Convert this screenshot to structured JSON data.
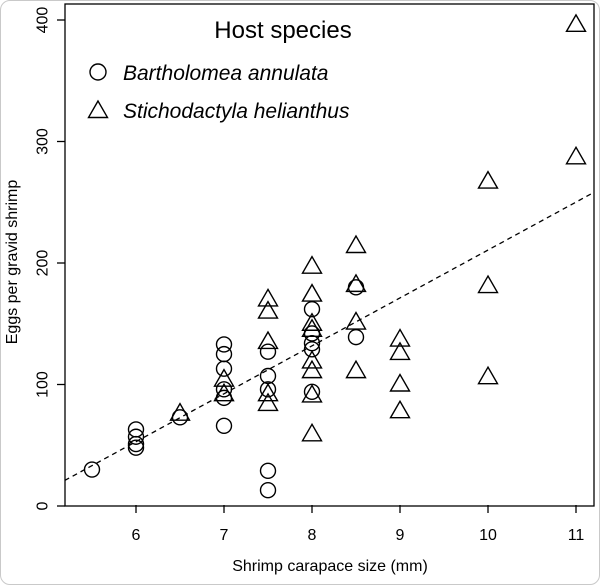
{
  "figure": {
    "background": "#ffffff",
    "frame_color": "#c9c9c9"
  },
  "colors": {
    "axis": "#000000",
    "marker": "#000000",
    "trend_line": "#000000",
    "text": "#000000"
  },
  "chart_data": {
    "type": "scatter",
    "title": "Host species",
    "xlabel": "Shrimp carapace size (mm)",
    "ylabel": "Eggs per gravid shrimp",
    "xlim": [
      5.2,
      11.2
    ],
    "ylim": [
      0,
      400
    ],
    "x_ticks": [
      6,
      7,
      8,
      9,
      10,
      11
    ],
    "y_ticks": [
      0,
      100,
      200,
      300,
      400
    ],
    "grid": false,
    "legend_position": "top-left-inside",
    "series": [
      {
        "name": "Bartholomea annulata",
        "marker": "circle",
        "points": [
          [
            5.5,
            30
          ],
          [
            6,
            63
          ],
          [
            6,
            57
          ],
          [
            6,
            51
          ],
          [
            6,
            48
          ],
          [
            6.5,
            73
          ],
          [
            7,
            133
          ],
          [
            7,
            125
          ],
          [
            7,
            113
          ],
          [
            7,
            96
          ],
          [
            7,
            89
          ],
          [
            7,
            66
          ],
          [
            7.5,
            127
          ],
          [
            7.5,
            107
          ],
          [
            7.5,
            96
          ],
          [
            7.5,
            29
          ],
          [
            7.5,
            13
          ],
          [
            8,
            162
          ],
          [
            8,
            142
          ],
          [
            8,
            134
          ],
          [
            8,
            129
          ],
          [
            8,
            94
          ],
          [
            8.5,
            180
          ],
          [
            8.5,
            139
          ]
        ]
      },
      {
        "name": "Stichodactyla helianthus",
        "marker": "triangle",
        "points": [
          [
            6.5,
            76
          ],
          [
            7,
            104
          ],
          [
            7,
            92
          ],
          [
            7.5,
            170
          ],
          [
            7.5,
            160
          ],
          [
            7.5,
            135
          ],
          [
            7.5,
            92
          ],
          [
            7.5,
            84
          ],
          [
            8,
            197
          ],
          [
            8,
            174
          ],
          [
            8,
            150
          ],
          [
            8,
            145
          ],
          [
            8,
            119
          ],
          [
            8,
            111
          ],
          [
            8,
            91
          ],
          [
            8,
            59
          ],
          [
            8.5,
            214
          ],
          [
            8.5,
            182
          ],
          [
            8.5,
            151
          ],
          [
            8.5,
            111
          ],
          [
            9,
            137
          ],
          [
            9,
            126
          ],
          [
            9,
            100
          ],
          [
            9,
            78
          ],
          [
            10,
            267
          ],
          [
            10,
            181
          ],
          [
            10,
            106
          ],
          [
            11,
            396
          ],
          [
            11,
            287
          ]
        ]
      }
    ],
    "trend_line": {
      "style": "dashed",
      "x1": 5.19,
      "y1": 21,
      "x2": 11.2,
      "y2": 258
    }
  }
}
